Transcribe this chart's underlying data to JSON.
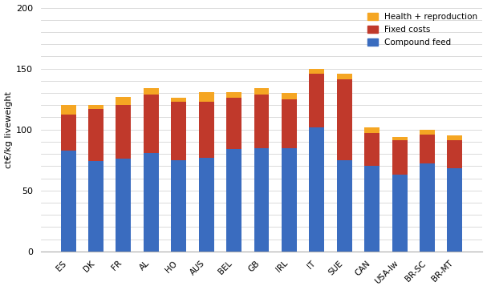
{
  "categories": [
    "ES",
    "DK",
    "FR",
    "AL",
    "HO",
    "AUS",
    "BEL",
    "GB",
    "IRL",
    "IT",
    "SUE",
    "CAN",
    "USA-lw",
    "BR-SC",
    "BR-MT"
  ],
  "compound_feed": [
    83,
    74,
    76,
    81,
    75,
    77,
    84,
    85,
    85,
    102,
    75,
    70,
    63,
    72,
    68
  ],
  "fixed_costs": [
    29,
    43,
    44,
    48,
    48,
    46,
    42,
    44,
    40,
    44,
    66,
    27,
    28,
    24,
    23
  ],
  "health_repro": [
    8,
    3,
    7,
    5,
    3,
    8,
    5,
    5,
    5,
    4,
    5,
    5,
    3,
    4,
    4
  ],
  "compound_feed_color": "#3a6cbf",
  "fixed_costs_color": "#c0392b",
  "health_repro_color": "#f5a623",
  "ylabel": "ct€/kg liveweight",
  "ylim": [
    0,
    200
  ],
  "yticks": [
    0,
    50,
    100,
    150,
    200
  ],
  "legend_labels": [
    "Health + reproduction",
    "Fixed costs",
    "Compound feed"
  ],
  "minor_grid_color": "#d5d5d5",
  "major_grid_color": "#d5d5d5"
}
